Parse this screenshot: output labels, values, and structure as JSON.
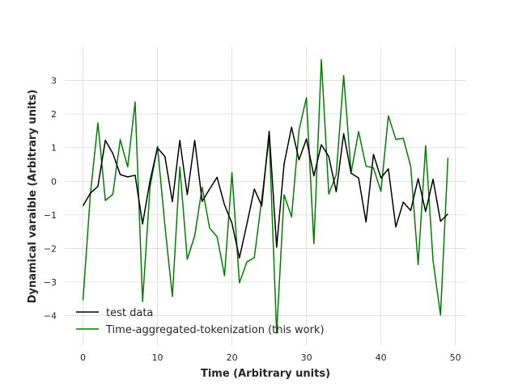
{
  "chart_data": {
    "type": "line",
    "title": "",
    "xlabel": "Time (Arbitrary units)",
    "ylabel": "Dynamical varaible (Arbitrary units)",
    "xlim": [
      -2.45,
      51.45
    ],
    "ylim": [
      -4.9,
      4.0
    ],
    "xticks": [
      0,
      10,
      20,
      30,
      40,
      50
    ],
    "yticks": [
      -4,
      -3,
      -2,
      -1,
      0,
      1,
      2,
      3
    ],
    "grid": true,
    "legend_position": "lower-left",
    "x": [
      0,
      1,
      2,
      3,
      4,
      5,
      6,
      7,
      8,
      9,
      10,
      11,
      12,
      13,
      14,
      15,
      16,
      17,
      18,
      19,
      20,
      21,
      22,
      23,
      24,
      25,
      26,
      27,
      28,
      29,
      30,
      31,
      32,
      33,
      34,
      35,
      36,
      37,
      38,
      39,
      40,
      41,
      42,
      43,
      44,
      45,
      46,
      47,
      48,
      49
    ],
    "series": [
      {
        "name": "test data",
        "color": "#000000",
        "values": [
          -0.73,
          -0.35,
          -0.15,
          1.22,
          0.83,
          0.2,
          0.13,
          0.18,
          -1.27,
          0.02,
          0.99,
          0.74,
          -0.61,
          1.22,
          -0.4,
          1.22,
          -0.6,
          -0.23,
          0.12,
          -0.7,
          -1.25,
          -2.28,
          -1.28,
          -0.23,
          -0.73,
          1.49,
          -1.96,
          0.52,
          1.61,
          0.64,
          1.26,
          0.16,
          1.09,
          0.74,
          -0.31,
          1.42,
          0.24,
          0.1,
          -1.21,
          0.8,
          0.1,
          0.37,
          -1.36,
          -0.62,
          -0.87,
          0.08,
          -0.9,
          0.06,
          -1.19,
          -0.97
        ]
      },
      {
        "name": "Time-aggregated-tokenization (this work)",
        "color": "#008000",
        "values": [
          -3.54,
          -0.36,
          1.74,
          -0.57,
          -0.39,
          1.24,
          0.43,
          2.36,
          -3.58,
          -0.17,
          1.04,
          -1.32,
          -3.43,
          0.43,
          -2.32,
          -1.62,
          -0.18,
          -1.39,
          -1.65,
          -2.81,
          0.26,
          -3.02,
          -2.4,
          -2.27,
          -0.53,
          1.31,
          -4.52,
          -0.4,
          -1.06,
          1.52,
          2.49,
          -1.86,
          3.62,
          -0.38,
          0.2,
          3.15,
          0.26,
          1.48,
          0.45,
          0.4,
          -0.3,
          1.95,
          1.25,
          1.28,
          0.44,
          -2.48,
          1.06,
          -2.36,
          -3.98,
          0.7
        ]
      }
    ]
  }
}
